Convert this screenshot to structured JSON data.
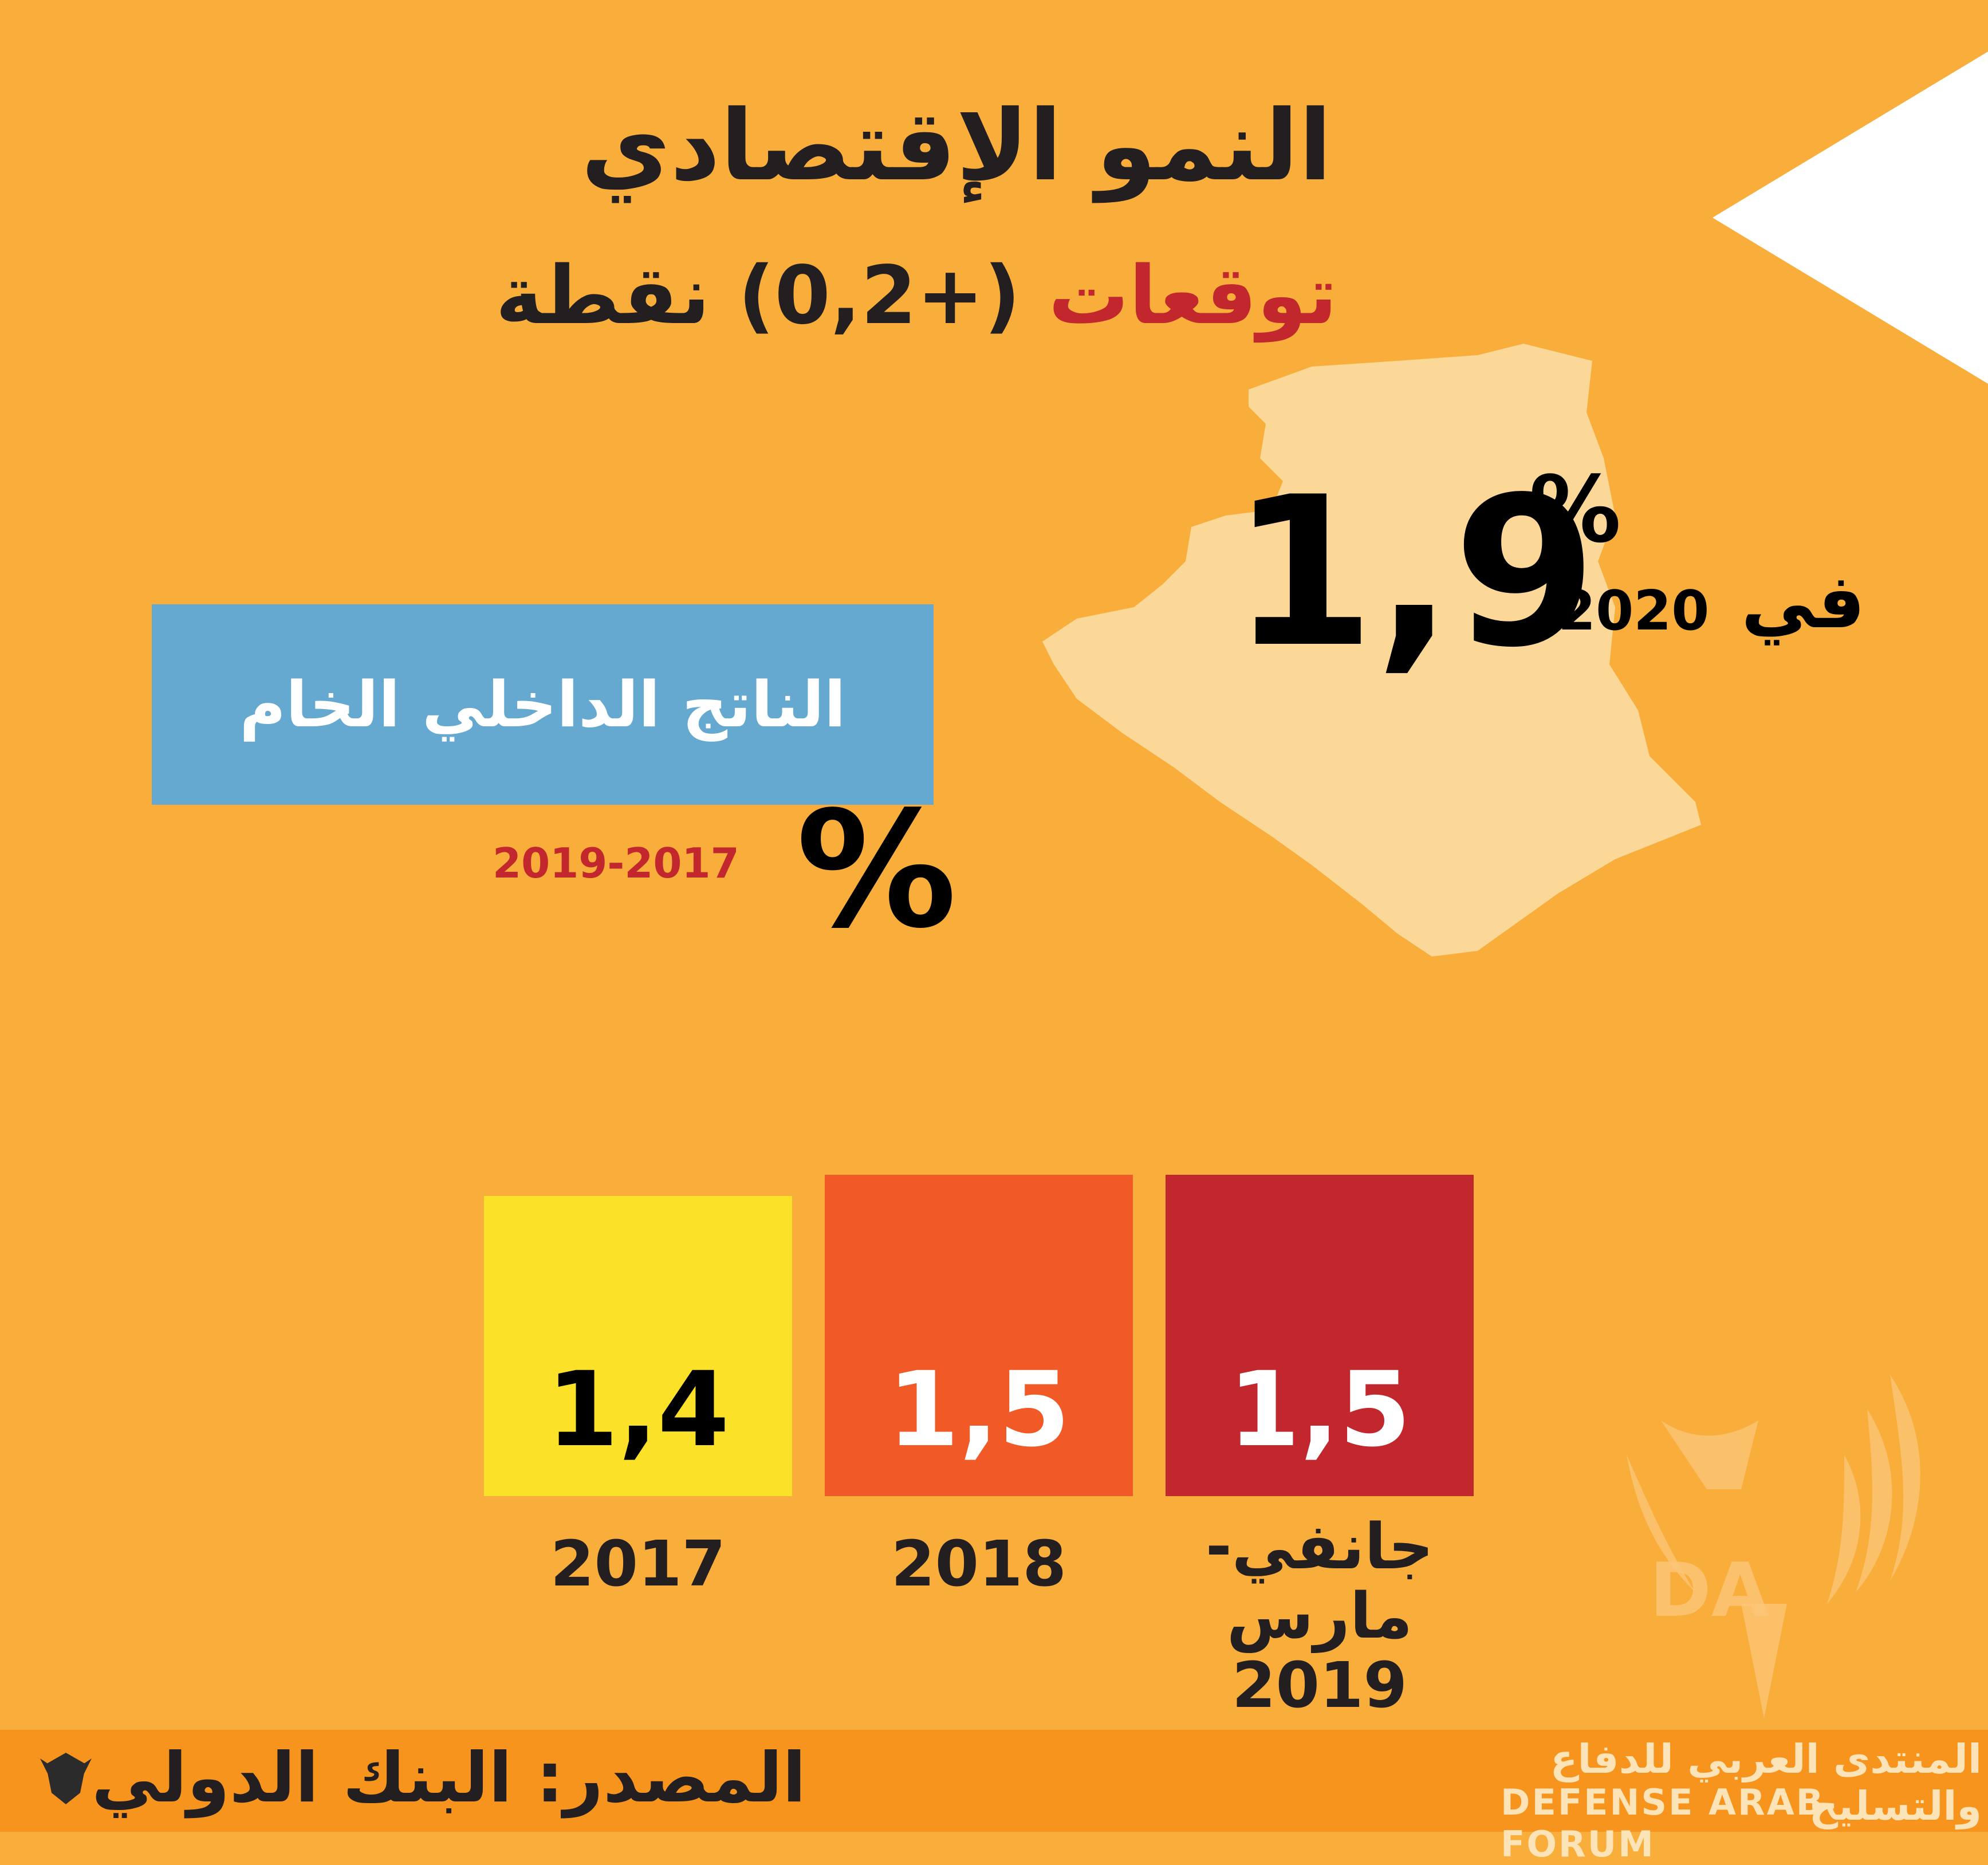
{
  "title": "النمو الإقتصادي",
  "subtitle": {
    "highlight": "توقعات",
    "rest": "(+0,2) نقطة"
  },
  "forecast": {
    "value": "1,9",
    "unit": "%",
    "prefix": "في",
    "year": "2020"
  },
  "gdp_label": "الناتج الداخلي الخام",
  "chart_data": {
    "type": "bar",
    "unit_label": "%",
    "period_label": "2019-2017",
    "categories": [
      "2017",
      "2018",
      "جانفي-مارس 2019"
    ],
    "values": [
      1.4,
      1.5,
      1.5
    ],
    "value_labels": [
      "1,4",
      "1,5",
      "1,5"
    ],
    "x_labels": [
      {
        "line1": "2017",
        "line2": ""
      },
      {
        "line1": "2018",
        "line2": ""
      },
      {
        "line1": "جانفي-مارس",
        "line2": "2019"
      }
    ],
    "colors": [
      "#fbe128",
      "#f15a27",
      "#c1272d"
    ],
    "value_text_colors": [
      "#000000",
      "#ffffff",
      "#ffffff"
    ]
  },
  "source": "المصدر: البنك الدولي",
  "watermark": {
    "arabic": "المنتدى العربي للدفاع والتسليح",
    "english": "DEFENSE ARAB FORUM",
    "logo_letters": "DA"
  }
}
